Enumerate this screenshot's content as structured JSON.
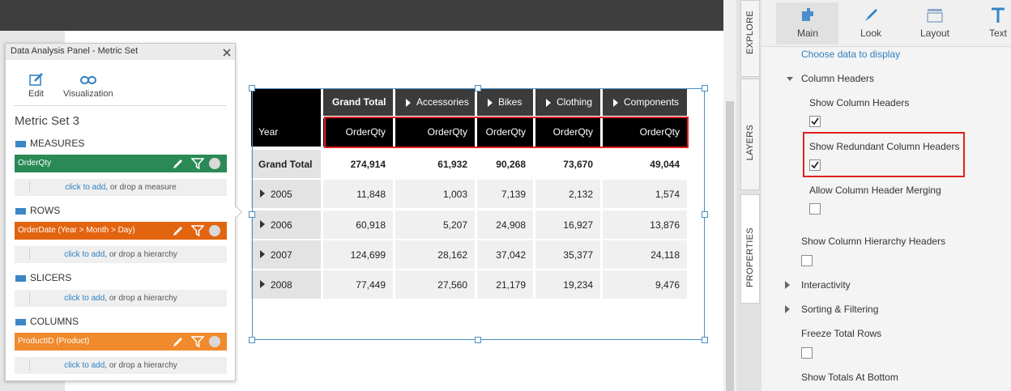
{
  "panel": {
    "title": "Data Analysis Panel - Metric Set",
    "tools": [
      "Edit",
      "Visualization"
    ],
    "name": "Metric Set 3",
    "sections": [
      {
        "label": "MEASURES",
        "item": "OrderQty",
        "add_link": "click to add",
        "add_text": ", or drop a measure"
      },
      {
        "label": "ROWS",
        "item": "OrderDate (Year > Month > Day)",
        "add_link": "click to add",
        "add_text": ", or drop a hierarchy"
      },
      {
        "label": "SLICERS",
        "add_link": "click to add",
        "add_text": ", or drop a hierarchy"
      },
      {
        "label": "COLUMNS",
        "item": "ProductID (Product)",
        "add_link": "click to add",
        "add_text": ", or drop a hierarchy"
      }
    ]
  },
  "table": {
    "corner": "Year",
    "column_headers": [
      "Grand Total",
      "Accessories",
      "Bikes",
      "Clothing",
      "Components"
    ],
    "measure_headers": [
      "OrderQty",
      "OrderQty",
      "OrderQty",
      "OrderQty",
      "OrderQty"
    ],
    "rows": [
      {
        "label": "Grand Total",
        "values": [
          "274,914",
          "61,932",
          "90,268",
          "73,670",
          "49,044"
        ]
      },
      {
        "label": "2005",
        "values": [
          "11,848",
          "1,003",
          "7,139",
          "2,132",
          "1,574"
        ]
      },
      {
        "label": "2006",
        "values": [
          "60,918",
          "5,207",
          "24,908",
          "16,927",
          "13,876"
        ]
      },
      {
        "label": "2007",
        "values": [
          "124,699",
          "28,162",
          "37,042",
          "35,377",
          "24,118"
        ]
      },
      {
        "label": "2008",
        "values": [
          "77,449",
          "27,560",
          "21,179",
          "19,234",
          "9,476"
        ]
      }
    ]
  },
  "tabs": [
    "EXPLORE",
    "LAYERS",
    "PROPERTIES"
  ],
  "toolbar": [
    "Main",
    "Look",
    "Layout",
    "Text"
  ],
  "properties": {
    "link": "Choose data to display",
    "items": [
      {
        "label": "Column Headers",
        "expanded": true
      },
      {
        "label": "Show Column Headers",
        "checked": true
      },
      {
        "label": "Show Redundant Column Headers",
        "checked": true
      },
      {
        "label": "Allow Column Header Merging",
        "checked": false
      },
      {
        "label": "Show Column Hierarchy Headers",
        "checked": false
      },
      {
        "label": "Interactivity",
        "expanded": false
      },
      {
        "label": "Sorting & Filtering",
        "expanded": false
      },
      {
        "label": "Freeze Total Rows",
        "checked": false
      },
      {
        "label": "Show Totals At Bottom"
      }
    ]
  }
}
